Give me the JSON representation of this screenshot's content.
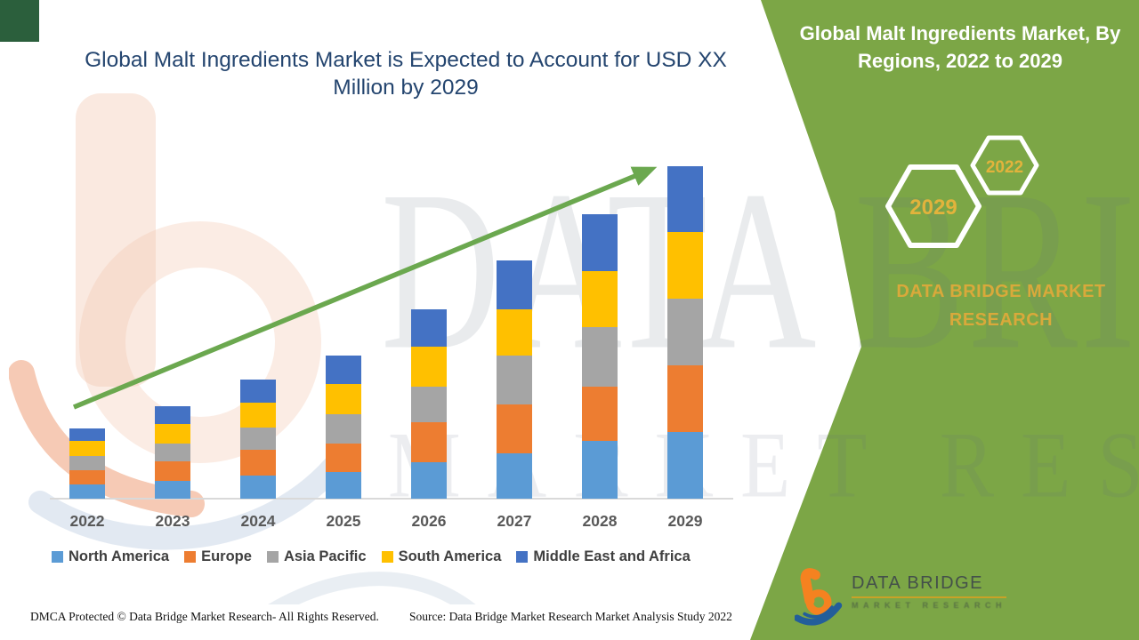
{
  "title": "Global Malt Ingredients Market is Expected to Account for USD XX Million by 2029",
  "panel": {
    "header": "Global Malt Ingredients Market, By Regions, 2022 to 2029",
    "hexagon_large_label": "2029",
    "hexagon_small_label": "2022",
    "brand_text": "DATA BRIDGE MARKET RESEARCH",
    "colors": {
      "panel_green": "#7CA646",
      "gold": "#D9A93B",
      "hex_outline": "#FFFFFF"
    }
  },
  "chart_data": {
    "type": "bar",
    "stacked": true,
    "title": "Global Malt Ingredients Market is Expected to Account for USD XX Million by 2029",
    "xlabel": "",
    "ylabel": "",
    "unit": "USD XX Million",
    "ylim": [
      0,
      380
    ],
    "grid": false,
    "legend_position": "bottom",
    "trend_arrow": true,
    "categories": [
      "2022",
      "2023",
      "2024",
      "2025",
      "2026",
      "2027",
      "2028",
      "2029"
    ],
    "series": [
      {
        "name": "North America",
        "color": "#5B9BD5",
        "values": [
          16,
          20,
          26,
          30,
          41,
          51,
          65,
          75
        ]
      },
      {
        "name": "Europe",
        "color": "#ED7D31",
        "values": [
          16,
          22,
          29,
          32,
          45,
          55,
          61,
          75
        ]
      },
      {
        "name": "Asia Pacific",
        "color": "#A5A5A5",
        "values": [
          16,
          20,
          25,
          33,
          40,
          55,
          67,
          75
        ]
      },
      {
        "name": "South America",
        "color": "#FFC000",
        "values": [
          17,
          22,
          28,
          34,
          45,
          52,
          63,
          75
        ]
      },
      {
        "name": "Middle East and Africa",
        "color": "#4472C4",
        "values": [
          14,
          20,
          26,
          32,
          42,
          55,
          64,
          74
        ]
      }
    ],
    "totals": [
      79,
      104,
      134,
      161,
      213,
      268,
      320,
      374
    ],
    "arrow_color": "#6BA84F"
  },
  "watermark": {
    "line1": "DATA BRIDGE",
    "line2": "MARKET RESEARCH"
  },
  "logo": {
    "name": "DATA BRIDGE",
    "sub": "MARKET RESEARCH"
  },
  "footer": {
    "dmca": "DMCA Protected © Data Bridge Market Research- All Rights Reserved.",
    "source": "Source: Data Bridge Market Research Market Analysis Study 2022"
  }
}
